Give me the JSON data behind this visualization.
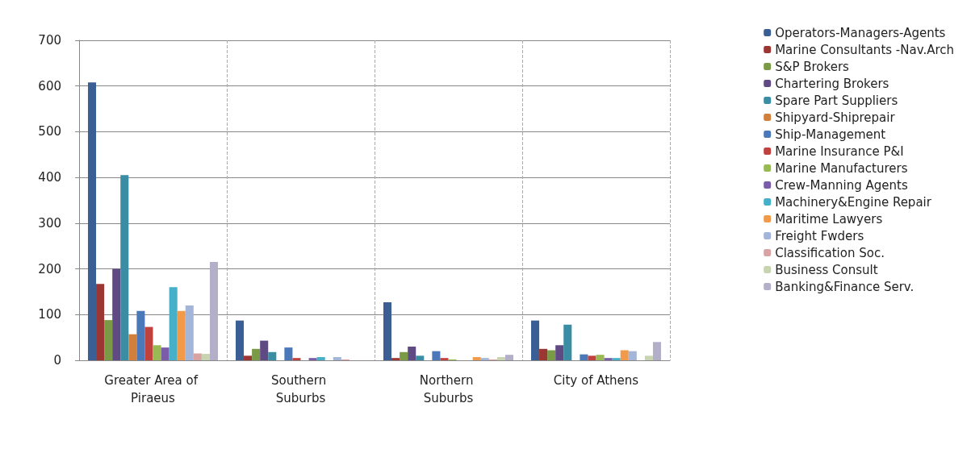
{
  "chart_data": {
    "type": "bar",
    "categories": [
      "Greater Area of Piraeus",
      "Southern Suburbs",
      "Northern Suburbs",
      "City of Athens"
    ],
    "series": [
      {
        "name": "Operators-Managers-Agents",
        "color": "#3b5f94",
        "values": [
          608,
          87,
          127,
          87
        ]
      },
      {
        "name": "Marine Consultants -Nav.Arch",
        "color": "#9b3633",
        "values": [
          167,
          10,
          5,
          25
        ]
      },
      {
        "name": "S&P Brokers",
        "color": "#7a9a45",
        "values": [
          88,
          25,
          18,
          22
        ]
      },
      {
        "name": "Chartering Brokers",
        "color": "#5f4a84",
        "values": [
          200,
          43,
          30,
          33
        ]
      },
      {
        "name": "Spare Part Suppliers",
        "color": "#3a8da3",
        "values": [
          405,
          18,
          10,
          78
        ]
      },
      {
        "name": "Shipyard-Shiprepair",
        "color": "#d27f3c",
        "values": [
          57,
          0,
          0,
          0
        ]
      },
      {
        "name": "Ship-Management",
        "color": "#4a78b8",
        "values": [
          108,
          28,
          20,
          13
        ]
      },
      {
        "name": "Marine Insurance P&I",
        "color": "#c0423f",
        "values": [
          73,
          5,
          5,
          10
        ]
      },
      {
        "name": "Marine Manufacturers",
        "color": "#98b954",
        "values": [
          33,
          0,
          2,
          12
        ]
      },
      {
        "name": "Crew-Manning Agents",
        "color": "#7a5ca8",
        "values": [
          28,
          5,
          0,
          5
        ]
      },
      {
        "name": "Machinery&Engine Repair",
        "color": "#46b0c8",
        "values": [
          160,
          7,
          0,
          5
        ]
      },
      {
        "name": "Maritime Lawyers",
        "color": "#f09a4a",
        "values": [
          108,
          0,
          7,
          22
        ]
      },
      {
        "name": "Freight Fwders",
        "color": "#a3b5d8",
        "values": [
          120,
          7,
          5,
          20
        ]
      },
      {
        "name": "Classification Soc.",
        "color": "#d8a3a2",
        "values": [
          15,
          2,
          2,
          0
        ]
      },
      {
        "name": "Business Consult",
        "color": "#c8d4b0",
        "values": [
          14,
          null,
          7,
          10
        ]
      },
      {
        "name": "Banking&Finance Serv.",
        "color": "#b4afc8",
        "values": [
          215,
          null,
          12,
          40
        ]
      }
    ],
    "ylim": [
      0,
      700
    ],
    "yticks": [
      0,
      100,
      200,
      300,
      400,
      500,
      600,
      700
    ],
    "grid": true,
    "legend": "right"
  }
}
